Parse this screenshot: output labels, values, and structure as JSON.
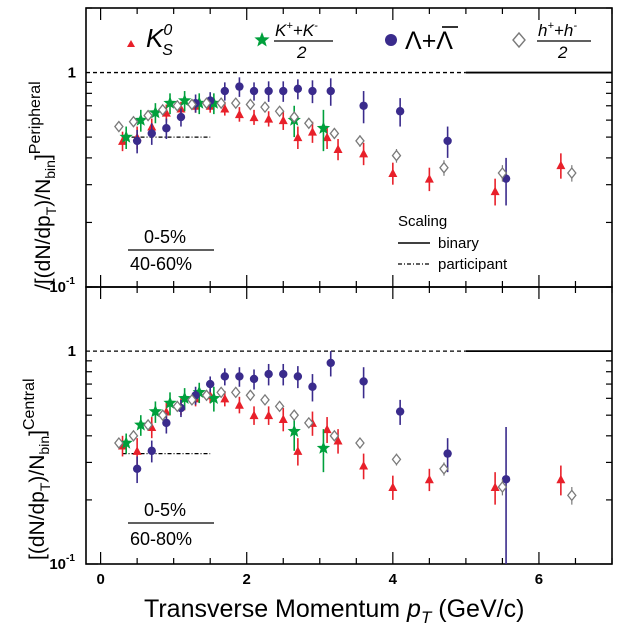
{
  "x_axis": {
    "label_main": "Transverse Momentum ",
    "label_var": "p",
    "label_sub": "T",
    "label_unit": " (GeV/c)",
    "ticks": [
      "0",
      "2",
      "4",
      "6"
    ]
  },
  "legend": {
    "k0s": {
      "main": "K",
      "sup": "0",
      "sub": "S"
    },
    "kpm": {
      "num_a": "K",
      "num_a_sup": "+",
      "num_op": "+",
      "num_b": "K",
      "num_b_sup": "-",
      "den": "2"
    },
    "lambda": {
      "label": "Λ+Λ"
    },
    "hpm": {
      "num_a": "h",
      "num_a_sup": "+",
      "num_op": "+",
      "num_b": "h",
      "num_b_sup": "-",
      "den": "2"
    }
  },
  "scaling_legend": {
    "title": "Scaling",
    "binary": "binary",
    "participant": "participant"
  },
  "top_panel": {
    "ratio_num": "0-5%",
    "ratio_den": "40-60%",
    "ytitle_main": "/[(dN/dp",
    "ytitle_sub": "T",
    "ytitle_mid": ")/N",
    "ytitle_nsub": "bin",
    "ytitle_end": "]",
    "ytitle_sup": "Peripheral",
    "yticks": {
      "one": "1",
      "tenth_base": "10",
      "tenth_exp": "-1"
    }
  },
  "bottom_panel": {
    "ratio_num": "0-5%",
    "ratio_den": "60-80%",
    "ytitle_main": "[(dN/dp",
    "ytitle_sub": "T",
    "ytitle_mid": ")/N",
    "ytitle_nsub": "bin",
    "ytitle_end": "]",
    "ytitle_sup": "Central",
    "yticks": {
      "one": "1",
      "tenth_base": "10",
      "tenth_exp": "-1"
    }
  },
  "colors": {
    "k0s": "#e8202a",
    "kpm": "#00a03c",
    "lambda": "#3a2b8c",
    "hpm": "#7a7a7a",
    "axis": "#000000"
  },
  "chart_data": [
    {
      "type": "scatter",
      "panel": "top",
      "xlim": [
        -0.2,
        7.0
      ],
      "ylim": [
        0.1,
        2.0
      ],
      "yscale": "log",
      "binary_scaling": 1.0,
      "participant_scaling": 0.5,
      "participant_xmax": 1.5,
      "series": [
        {
          "key": "k0s",
          "marker": "triangle",
          "points": [
            [
              0.3,
              0.48,
              0.05
            ],
            [
              0.5,
              0.5,
              0.06
            ],
            [
              0.7,
              0.56,
              0.05
            ],
            [
              0.9,
              0.65,
              0.06
            ],
            [
              1.1,
              0.68,
              0.05
            ],
            [
              1.3,
              0.7,
              0.05
            ],
            [
              1.5,
              0.7,
              0.05
            ],
            [
              1.7,
              0.68,
              0.05
            ],
            [
              1.9,
              0.64,
              0.05
            ],
            [
              2.1,
              0.62,
              0.05
            ],
            [
              2.3,
              0.61,
              0.05
            ],
            [
              2.5,
              0.6,
              0.06
            ],
            [
              2.7,
              0.5,
              0.06
            ],
            [
              2.9,
              0.53,
              0.06
            ],
            [
              3.1,
              0.5,
              0.06
            ],
            [
              3.25,
              0.44,
              0.05
            ],
            [
              3.6,
              0.42,
              0.05
            ],
            [
              4.0,
              0.34,
              0.04
            ],
            [
              4.5,
              0.32,
              0.04
            ],
            [
              5.4,
              0.28,
              0.04
            ],
            [
              6.3,
              0.37,
              0.05
            ]
          ]
        },
        {
          "key": "kpm",
          "marker": "star",
          "points": [
            [
              0.35,
              0.5,
              0.06
            ],
            [
              0.55,
              0.6,
              0.07
            ],
            [
              0.75,
              0.65,
              0.07
            ],
            [
              0.95,
              0.72,
              0.08
            ],
            [
              1.15,
              0.74,
              0.08
            ],
            [
              1.35,
              0.72,
              0.08
            ],
            [
              1.55,
              0.72,
              0.08
            ],
            [
              2.65,
              0.6,
              0.1
            ],
            [
              3.05,
              0.55,
              0.12
            ]
          ]
        },
        {
          "key": "lambda",
          "marker": "circle",
          "points": [
            [
              0.5,
              0.48,
              0.06
            ],
            [
              0.7,
              0.52,
              0.06
            ],
            [
              0.9,
              0.55,
              0.06
            ],
            [
              1.1,
              0.62,
              0.06
            ],
            [
              1.3,
              0.72,
              0.07
            ],
            [
              1.5,
              0.74,
              0.07
            ],
            [
              1.7,
              0.82,
              0.08
            ],
            [
              1.9,
              0.86,
              0.09
            ],
            [
              2.1,
              0.82,
              0.08
            ],
            [
              2.3,
              0.82,
              0.09
            ],
            [
              2.5,
              0.82,
              0.09
            ],
            [
              2.7,
              0.84,
              0.09
            ],
            [
              2.9,
              0.82,
              0.1
            ],
            [
              3.15,
              0.82,
              0.12
            ],
            [
              3.6,
              0.7,
              0.12
            ],
            [
              4.1,
              0.66,
              0.1
            ],
            [
              4.75,
              0.48,
              0.08
            ],
            [
              5.55,
              0.32,
              0.08
            ]
          ]
        },
        {
          "key": "hpm",
          "marker": "diamond",
          "points": [
            [
              0.25,
              0.56,
              0.03
            ],
            [
              0.45,
              0.59,
              0.03
            ],
            [
              0.65,
              0.63,
              0.03
            ],
            [
              0.85,
              0.67,
              0.03
            ],
            [
              1.05,
              0.7,
              0.03
            ],
            [
              1.25,
              0.71,
              0.03
            ],
            [
              1.45,
              0.72,
              0.03
            ],
            [
              1.65,
              0.72,
              0.03
            ],
            [
              1.85,
              0.72,
              0.03
            ],
            [
              2.05,
              0.71,
              0.03
            ],
            [
              2.25,
              0.69,
              0.03
            ],
            [
              2.45,
              0.66,
              0.03
            ],
            [
              2.65,
              0.62,
              0.03
            ],
            [
              2.85,
              0.58,
              0.03
            ],
            [
              3.2,
              0.52,
              0.03
            ],
            [
              3.55,
              0.48,
              0.03
            ],
            [
              4.05,
              0.41,
              0.03
            ],
            [
              4.7,
              0.36,
              0.03
            ],
            [
              5.5,
              0.34,
              0.03
            ],
            [
              6.45,
              0.34,
              0.03
            ]
          ]
        }
      ]
    },
    {
      "type": "scatter",
      "panel": "bottom",
      "xlim": [
        -0.2,
        7.0
      ],
      "ylim": [
        0.1,
        2.0
      ],
      "yscale": "log",
      "binary_scaling": 1.0,
      "participant_scaling": 0.33,
      "participant_xmax": 1.5,
      "series": [
        {
          "key": "k0s",
          "marker": "triangle",
          "points": [
            [
              0.3,
              0.36,
              0.04
            ],
            [
              0.5,
              0.34,
              0.05
            ],
            [
              0.7,
              0.44,
              0.05
            ],
            [
              0.9,
              0.52,
              0.05
            ],
            [
              1.1,
              0.55,
              0.05
            ],
            [
              1.3,
              0.6,
              0.05
            ],
            [
              1.5,
              0.62,
              0.05
            ],
            [
              1.7,
              0.6,
              0.05
            ],
            [
              1.9,
              0.56,
              0.05
            ],
            [
              2.1,
              0.5,
              0.05
            ],
            [
              2.3,
              0.5,
              0.05
            ],
            [
              2.5,
              0.48,
              0.06
            ],
            [
              2.7,
              0.34,
              0.05
            ],
            [
              2.9,
              0.46,
              0.06
            ],
            [
              3.1,
              0.43,
              0.06
            ],
            [
              3.25,
              0.38,
              0.05
            ],
            [
              3.6,
              0.29,
              0.04
            ],
            [
              4.0,
              0.23,
              0.03
            ],
            [
              4.5,
              0.25,
              0.03
            ],
            [
              5.4,
              0.23,
              0.04
            ],
            [
              6.3,
              0.25,
              0.04
            ]
          ]
        },
        {
          "key": "kpm",
          "marker": "star",
          "points": [
            [
              0.35,
              0.37,
              0.04
            ],
            [
              0.55,
              0.45,
              0.05
            ],
            [
              0.75,
              0.52,
              0.06
            ],
            [
              0.95,
              0.57,
              0.07
            ],
            [
              1.15,
              0.6,
              0.07
            ],
            [
              1.35,
              0.64,
              0.07
            ],
            [
              1.55,
              0.6,
              0.08
            ],
            [
              2.65,
              0.42,
              0.08
            ],
            [
              3.05,
              0.35,
              0.08
            ]
          ]
        },
        {
          "key": "lambda",
          "marker": "circle",
          "points": [
            [
              0.5,
              0.28,
              0.04
            ],
            [
              0.7,
              0.34,
              0.04
            ],
            [
              0.9,
              0.46,
              0.05
            ],
            [
              1.1,
              0.54,
              0.05
            ],
            [
              1.3,
              0.62,
              0.06
            ],
            [
              1.5,
              0.7,
              0.06
            ],
            [
              1.7,
              0.76,
              0.07
            ],
            [
              1.9,
              0.76,
              0.08
            ],
            [
              2.1,
              0.74,
              0.08
            ],
            [
              2.3,
              0.78,
              0.09
            ],
            [
              2.5,
              0.78,
              0.09
            ],
            [
              2.7,
              0.76,
              0.09
            ],
            [
              2.9,
              0.68,
              0.1
            ],
            [
              3.15,
              0.88,
              0.12
            ],
            [
              3.6,
              0.72,
              0.12
            ],
            [
              4.1,
              0.52,
              0.07
            ],
            [
              4.75,
              0.33,
              0.06
            ],
            [
              5.55,
              0.25,
              0.19
            ]
          ]
        },
        {
          "key": "hpm",
          "marker": "diamond",
          "points": [
            [
              0.25,
              0.37,
              0.02
            ],
            [
              0.45,
              0.4,
              0.02
            ],
            [
              0.65,
              0.45,
              0.02
            ],
            [
              0.85,
              0.5,
              0.02
            ],
            [
              1.05,
              0.55,
              0.02
            ],
            [
              1.25,
              0.59,
              0.02
            ],
            [
              1.45,
              0.62,
              0.02
            ],
            [
              1.65,
              0.64,
              0.02
            ],
            [
              1.85,
              0.64,
              0.02
            ],
            [
              2.05,
              0.62,
              0.02
            ],
            [
              2.25,
              0.59,
              0.02
            ],
            [
              2.45,
              0.55,
              0.02
            ],
            [
              2.65,
              0.5,
              0.02
            ],
            [
              2.85,
              0.46,
              0.02
            ],
            [
              3.2,
              0.4,
              0.02
            ],
            [
              3.55,
              0.37,
              0.02
            ],
            [
              4.05,
              0.31,
              0.02
            ],
            [
              4.7,
              0.28,
              0.02
            ],
            [
              5.5,
              0.23,
              0.02
            ],
            [
              6.45,
              0.21,
              0.02
            ]
          ]
        }
      ]
    }
  ]
}
